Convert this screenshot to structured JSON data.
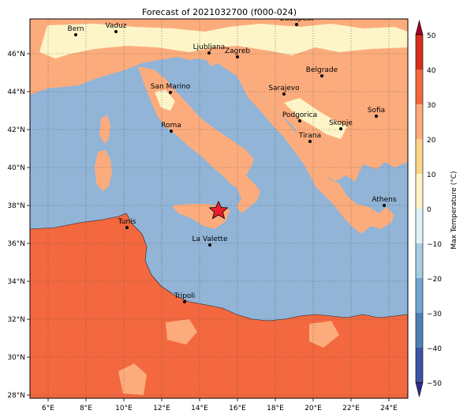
{
  "title": "Forecast of 2021032700 (f000-024)",
  "map": {
    "lon_ticks": [
      "6°E",
      "8°E",
      "10°E",
      "12°E",
      "14°E",
      "16°E",
      "18°E",
      "20°E",
      "22°E",
      "24°E"
    ],
    "lat_ticks": [
      "28°N",
      "30°N",
      "32°N",
      "34°N",
      "36°N",
      "38°N",
      "40°N",
      "42°N",
      "44°N",
      "46°N"
    ],
    "grid": true,
    "colors": {
      "sea": "#91b4d7",
      "band_0_10": "#fdf5c8",
      "band_10_20": "#fcac7c",
      "band_20_30": "#f3683f",
      "outline": "#222222",
      "marker_star": "#e8202a"
    },
    "cities": [
      {
        "name": "Bern"
      },
      {
        "name": "Vaduz"
      },
      {
        "name": "Budapest"
      },
      {
        "name": "Ljubljana"
      },
      {
        "name": "Zagreb"
      },
      {
        "name": "Belgrade"
      },
      {
        "name": "San Marino"
      },
      {
        "name": "Sarajevo"
      },
      {
        "name": "Sofia"
      },
      {
        "name": "Podgorica"
      },
      {
        "name": "Skopje"
      },
      {
        "name": "Roma"
      },
      {
        "name": "Tirana"
      },
      {
        "name": "Athens"
      },
      {
        "name": "Tunis"
      },
      {
        "name": "La Valette"
      },
      {
        "name": "Tripoli"
      }
    ],
    "marker": {
      "icon": "star-icon"
    }
  },
  "colorbar": {
    "label": "Max Temperature (°C)",
    "ticks": [
      "−50",
      "−40",
      "−30",
      "−20",
      "−10",
      "0",
      "10",
      "20",
      "30",
      "40",
      "50"
    ],
    "colors": [
      "#2b2f8c",
      "#3b56a6",
      "#4f7fb8",
      "#74a5d0",
      "#a6cde3",
      "#e1f2f7",
      "#fdf5c8",
      "#fdd38a",
      "#fcac7c",
      "#f3683f",
      "#d7301f",
      "#a50026"
    ],
    "extend": "both"
  }
}
